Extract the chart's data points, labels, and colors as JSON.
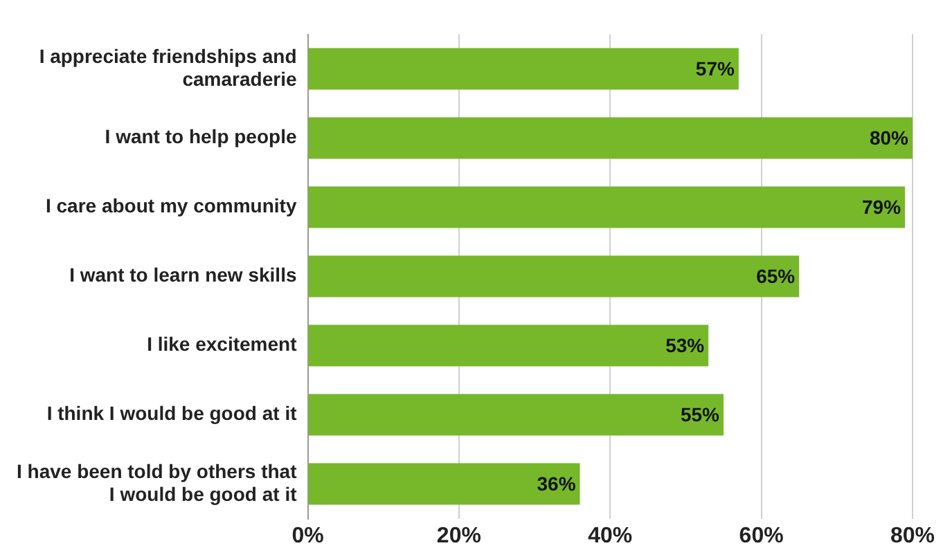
{
  "chart_data": {
    "type": "bar",
    "orientation": "horizontal",
    "categories": [
      "I appreciate friendships and camaraderie",
      "I want to help people",
      "I care about my community",
      "I want to learn new skills",
      "I like excitement",
      "I think I would be good at it",
      "I have been told by others that I would be good at it"
    ],
    "values": [
      57,
      80,
      79,
      65,
      53,
      55,
      36
    ],
    "value_labels": [
      "57%",
      "80%",
      "79%",
      "65%",
      "53%",
      "55%",
      "36%"
    ],
    "color": "#76b82a",
    "xlim": [
      0,
      80
    ],
    "xticks": [
      {
        "value": 0,
        "label": "0%"
      },
      {
        "value": 20,
        "label": "20%"
      },
      {
        "value": 40,
        "label": "40%"
      },
      {
        "value": 60,
        "label": "60%"
      },
      {
        "value": 80,
        "label": "80%"
      }
    ],
    "grid": "x"
  }
}
